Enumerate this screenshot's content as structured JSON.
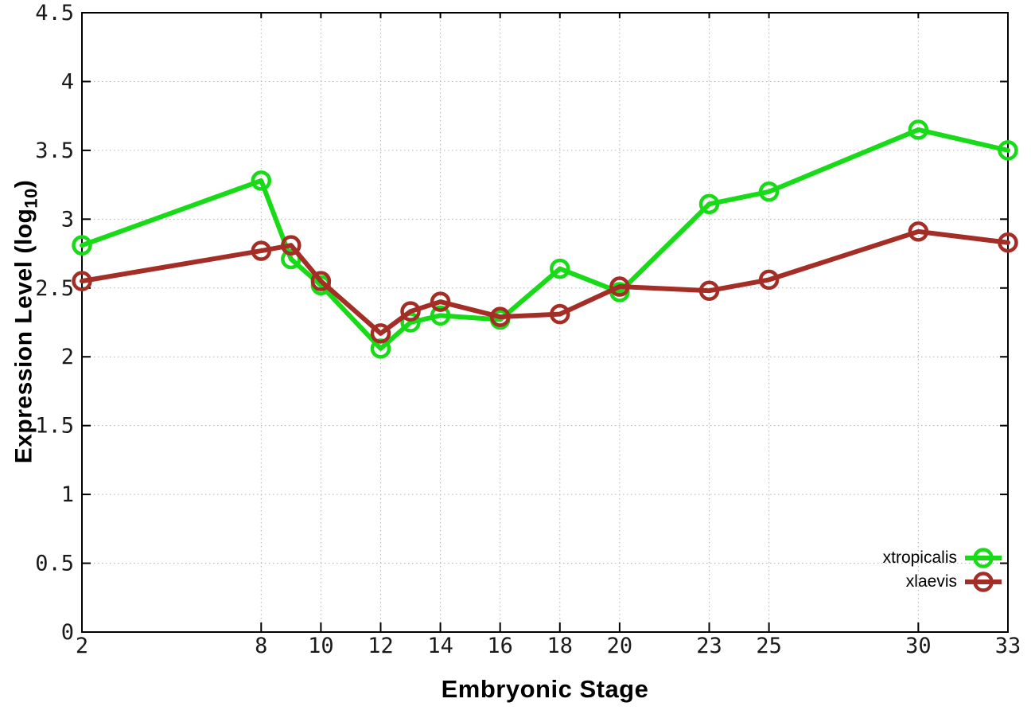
{
  "chart_data": {
    "type": "line",
    "title": "",
    "xlabel": "Embryonic Stage",
    "ylabel": "Expression Level (log10)",
    "ylabel_parts": {
      "main": "Expression Level (log",
      "sub": "10",
      "close": ")"
    },
    "xlim": [
      2,
      33
    ],
    "ylim": [
      0,
      4.5
    ],
    "grid": true,
    "legend_position": "bottom-right",
    "marker": "open-circle",
    "x": [
      2,
      8,
      9,
      10,
      12,
      13,
      14,
      16,
      18,
      20,
      23,
      25,
      30,
      33
    ],
    "series": [
      {
        "name": "xtropicalis",
        "color": "#16db16",
        "values": [
          2.81,
          3.28,
          2.71,
          2.52,
          2.06,
          2.25,
          2.3,
          2.27,
          2.64,
          2.47,
          3.11,
          3.2,
          3.65,
          3.5
        ]
      },
      {
        "name": "xlaevis",
        "color": "#a42d26",
        "values": [
          2.55,
          2.77,
          2.81,
          2.55,
          2.17,
          2.33,
          2.4,
          2.29,
          2.31,
          2.51,
          2.48,
          2.56,
          2.91,
          2.83
        ]
      }
    ],
    "x_ticks": {
      "values": [
        2,
        8,
        10,
        12,
        14,
        16,
        18,
        20,
        23,
        25,
        30,
        33
      ],
      "labels": [
        "2",
        "8",
        "10",
        "12",
        "14",
        "16",
        "18",
        "20",
        "23",
        "25",
        "30",
        "33"
      ]
    },
    "y_ticks": {
      "values": [
        0,
        0.5,
        1,
        1.5,
        2,
        2.5,
        3,
        3.5,
        4,
        4.5
      ],
      "labels": [
        "0",
        "0.5",
        "1",
        "1.5",
        "2",
        "2.5",
        "3",
        "3.5",
        "4",
        "4.5"
      ]
    }
  },
  "legend": {
    "entries": [
      {
        "label": "xtropicalis",
        "color": "#16db16"
      },
      {
        "label": "xlaevis",
        "color": "#a42d26"
      }
    ]
  }
}
